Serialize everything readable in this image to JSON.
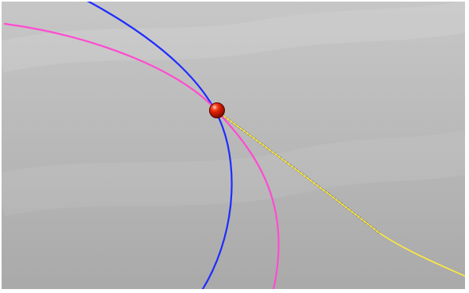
{
  "viewport": {
    "background_top": "#c7c7c7",
    "background_bottom": "#a9a9a9",
    "border_color": "#ffffff"
  },
  "curves": {
    "blue_curve": {
      "color": "#1f2cff"
    },
    "magenta_curve": {
      "color": "#ff4bd1"
    },
    "trajectory_dotted": {
      "color": "#2b2b2b"
    },
    "trajectory_yellow": {
      "color": "#ffeb3b"
    }
  },
  "marker": {
    "fill": "#e32000",
    "highlight": "#ff8a6a"
  }
}
